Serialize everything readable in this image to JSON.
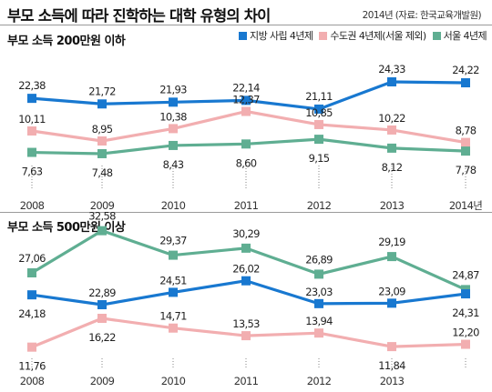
{
  "title": "부모 소득에 따라 진학하는 대학 유형의 차이",
  "source": "2014년 (자료: 한국교육개발원)",
  "colors": {
    "local_private": "#1878d0",
    "metro": "#f2aeb0",
    "seoul": "#5fae92"
  },
  "legend": [
    {
      "key": "local_private",
      "label": "지방 사립 4년제"
    },
    {
      "key": "metro",
      "label": "수도권 4년제(서울 제외)"
    },
    {
      "key": "seoul",
      "label": "서울 4년제"
    }
  ],
  "chart_data": [
    {
      "type": "line",
      "title": "부모 소득 200만원 이하",
      "categories": [
        "2008",
        "2009",
        "2010",
        "2011",
        "2012",
        "2013",
        "2014년"
      ],
      "series": [
        {
          "key": "local_private",
          "name": "지방 사립 4년제",
          "values": [
            22.38,
            21.72,
            21.93,
            22.14,
            21.11,
            24.33,
            24.22
          ],
          "labels": [
            "22,38",
            "21,72",
            "21,93",
            "22,14",
            "21,11",
            "24,33",
            "24,22"
          ]
        },
        {
          "key": "metro",
          "name": "수도권 4년제(서울 제외)",
          "values": [
            10.11,
            8.95,
            10.38,
            12.37,
            10.85,
            10.22,
            8.78
          ],
          "labels": [
            "10,11",
            "8,95",
            "10,38",
            "12,37",
            "10,85",
            "10,22",
            "8,78"
          ]
        },
        {
          "key": "seoul",
          "name": "서울 4년제",
          "values": [
            7.63,
            7.48,
            8.43,
            8.6,
            9.15,
            8.12,
            7.78
          ],
          "labels": [
            "7,63",
            "7,48",
            "8,43",
            "8,60",
            "9,15",
            "8,12",
            "7,78"
          ]
        }
      ]
    },
    {
      "type": "line",
      "title": "부모 소득 500만원 이상",
      "categories": [
        "2008",
        "2009",
        "2010",
        "2011",
        "2012",
        "2013",
        "2014"
      ],
      "tick_labels": [
        "2008",
        "2009",
        "2010",
        "2011",
        "2012",
        "2013",
        ""
      ],
      "series": [
        {
          "key": "seoul",
          "name": "서울 4년제",
          "values": [
            27.06,
            32.58,
            29.37,
            30.29,
            26.89,
            29.19,
            24.87
          ],
          "labels": [
            "27,06",
            "32,58",
            "29,37",
            "30,29",
            "26,89",
            "29,19",
            "24,87"
          ]
        },
        {
          "key": "local_private",
          "name": "지방 사립 4년제",
          "values": [
            24.18,
            22.89,
            24.51,
            26.02,
            23.03,
            23.09,
            24.31
          ],
          "labels": [
            "24,18",
            "22,89",
            "24,51",
            "26,02",
            "23,03",
            "23,09",
            "24,31"
          ]
        },
        {
          "key": "metro",
          "name": "수도권 4년제(서울 제외)",
          "values": [
            11.76,
            16.22,
            14.71,
            13.53,
            13.94,
            11.84,
            12.2
          ],
          "labels": [
            "11,76",
            "16,22",
            "14,71",
            "13,53",
            "13,94",
            "11,84",
            "12,20"
          ]
        }
      ]
    }
  ]
}
